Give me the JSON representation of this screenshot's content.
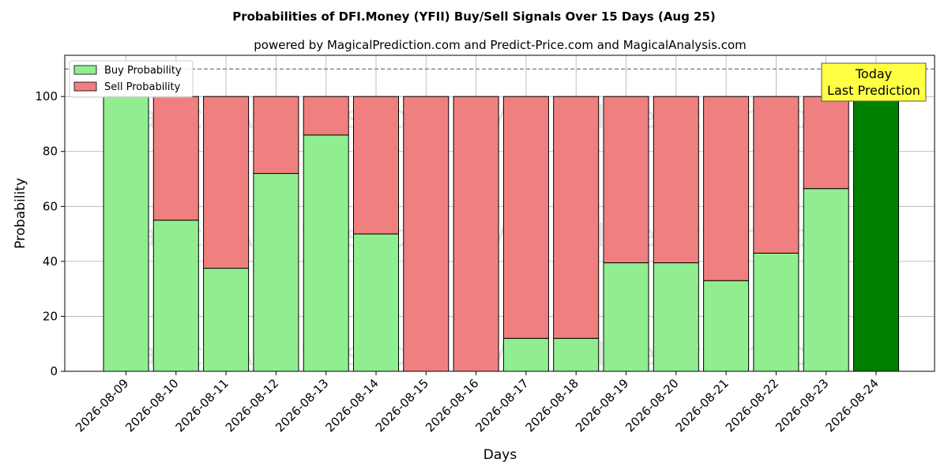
{
  "chart_data": {
    "type": "bar",
    "stacked": true,
    "title": "Probabilities of DFI.Money (YFII) Buy/Sell Signals Over 15 Days (Aug 25)",
    "subtitle": "powered by MagicalPrediction.com and Predict-Price.com and MagicalAnalysis.com",
    "xlabel": "Days",
    "ylabel": "Probability",
    "ylim": [
      0,
      115
    ],
    "yticks": [
      0,
      20,
      40,
      60,
      80,
      100
    ],
    "grid": true,
    "legend_position": "top-left",
    "reference_line": 110,
    "categories": [
      "2026-08-09",
      "2026-08-10",
      "2026-08-11",
      "2026-08-12",
      "2026-08-13",
      "2026-08-14",
      "2026-08-15",
      "2026-08-16",
      "2026-08-17",
      "2026-08-18",
      "2026-08-19",
      "2026-08-20",
      "2026-08-21",
      "2026-08-22",
      "2026-08-23",
      "2026-08-24"
    ],
    "series": [
      {
        "name": "Buy Probability",
        "color": "#90EE90",
        "values": [
          100,
          55,
          37.5,
          72,
          86,
          50,
          0,
          0,
          12,
          12,
          39.5,
          39.5,
          33,
          43,
          66.5,
          100
        ]
      },
      {
        "name": "Sell Probability",
        "color": "#F08080",
        "values": [
          0,
          45,
          62.5,
          28,
          14,
          50,
          100,
          100,
          88,
          88,
          60.5,
          60.5,
          67,
          57,
          33.5,
          0
        ]
      }
    ],
    "highlight": {
      "index": 15,
      "color": "#008000"
    },
    "annotation": {
      "line1": "Today",
      "line2": "Last Prediction",
      "background": "#FFFF44"
    },
    "watermarks": [
      "MagicalAnalysis.com",
      "MagicalPrediction.com"
    ]
  }
}
